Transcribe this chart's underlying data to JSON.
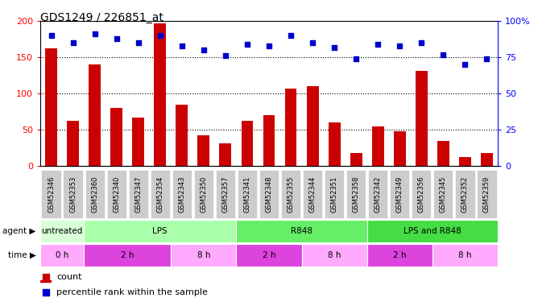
{
  "title": "GDS1249 / 226851_at",
  "samples": [
    "GSM52346",
    "GSM52353",
    "GSM52360",
    "GSM52340",
    "GSM52347",
    "GSM52354",
    "GSM52343",
    "GSM52350",
    "GSM52357",
    "GSM52341",
    "GSM52348",
    "GSM52355",
    "GSM52344",
    "GSM52351",
    "GSM52358",
    "GSM52342",
    "GSM52349",
    "GSM52356",
    "GSM52345",
    "GSM52352",
    "GSM52359"
  ],
  "counts": [
    163,
    62,
    140,
    80,
    67,
    197,
    85,
    43,
    31,
    62,
    70,
    107,
    110,
    60,
    18,
    55,
    48,
    131,
    35,
    13,
    18
  ],
  "percentiles": [
    90,
    85,
    91,
    88,
    85,
    90,
    83,
    80,
    76,
    84,
    83,
    90,
    85,
    82,
    74,
    84,
    83,
    85,
    77,
    70,
    74
  ],
  "agent_groups": [
    {
      "label": "untreated",
      "start": 0,
      "end": 2,
      "color": "#d8ffd8"
    },
    {
      "label": "LPS",
      "start": 2,
      "end": 9,
      "color": "#aaffaa"
    },
    {
      "label": "R848",
      "start": 9,
      "end": 15,
      "color": "#66ee66"
    },
    {
      "label": "LPS and R848",
      "start": 15,
      "end": 21,
      "color": "#44dd44"
    }
  ],
  "time_groups": [
    {
      "label": "0 h",
      "start": 0,
      "end": 2,
      "color": "#ffaaff"
    },
    {
      "label": "2 h",
      "start": 2,
      "end": 6,
      "color": "#dd44dd"
    },
    {
      "label": "8 h",
      "start": 6,
      "end": 9,
      "color": "#ffaaff"
    },
    {
      "label": "2 h",
      "start": 9,
      "end": 12,
      "color": "#dd44dd"
    },
    {
      "label": "8 h",
      "start": 12,
      "end": 15,
      "color": "#ffaaff"
    },
    {
      "label": "2 h",
      "start": 15,
      "end": 18,
      "color": "#dd44dd"
    },
    {
      "label": "8 h",
      "start": 18,
      "end": 21,
      "color": "#ffaaff"
    }
  ],
  "bar_color": "#cc0000",
  "dot_color": "#0000cc",
  "left_ylim": [
    0,
    200
  ],
  "right_ylim": [
    0,
    100
  ],
  "left_yticks": [
    0,
    50,
    100,
    150,
    200
  ],
  "right_yticks": [
    0,
    25,
    50,
    75,
    100
  ],
  "right_yticklabels": [
    "0",
    "25",
    "50",
    "75",
    "100%"
  ],
  "grid_values": [
    50,
    100,
    150
  ],
  "bar_color_red": "#cc0000",
  "dot_color_blue": "#0000cc",
  "legend_count_label": "count",
  "legend_pct_label": "percentile rank within the sample",
  "xtick_bg_color": "#cccccc",
  "chart_bg_color": "#ffffff"
}
